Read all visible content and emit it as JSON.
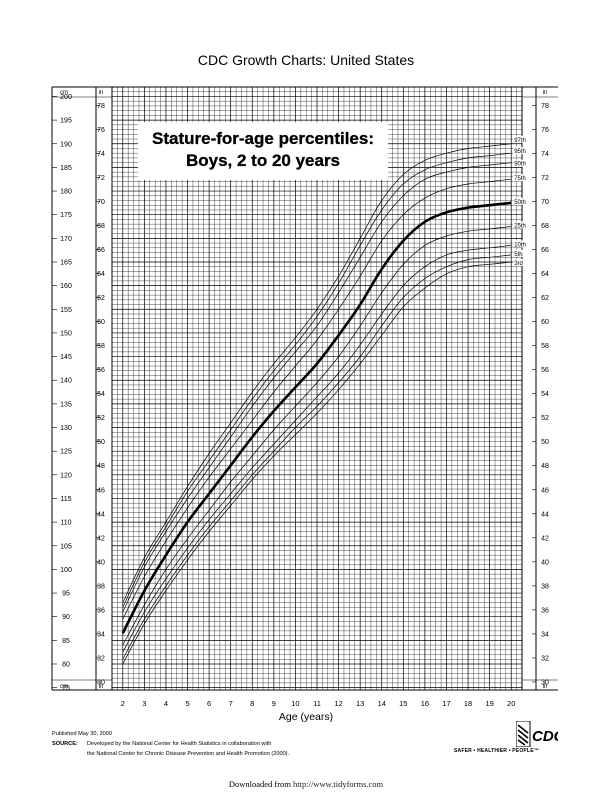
{
  "page": {
    "title": "CDC Growth Charts: United States",
    "published": "Published May 30, 2000",
    "source_label": "SOURCE:",
    "source_line1": "Developed by the National Center for Health Statistics in collaboration with",
    "source_line2": "the National Center for Chronic Disease Prevention and Health Promotion (2000).",
    "org_logo": "cdc-logo",
    "safer_healthier": "SAFER • HEALTHIER • PEOPLE™",
    "downloaded_prefix": "Downloaded from",
    "downloaded_url": "http://www.tidyforms.com"
  },
  "chart_data": {
    "type": "line",
    "title_line1": "Stature-for-age percentiles:",
    "title_line2": "Boys, 2 to 20 years",
    "xlabel": "Age (years)",
    "left_unit_top": "cm",
    "left_unit_bottom": "cm",
    "right_unit_top": "in",
    "right_unit_bottom": "in",
    "inner_unit_top": "in",
    "inner_unit_bottom": "in",
    "xlim": [
      1.5,
      20.5
    ],
    "ylim_cm": [
      74.5,
      202
    ],
    "x_ticks": [
      2,
      3,
      4,
      5,
      6,
      7,
      8,
      9,
      10,
      11,
      12,
      13,
      14,
      15,
      16,
      17,
      18,
      19,
      20
    ],
    "cm_ticks": [
      75,
      80,
      85,
      90,
      95,
      100,
      105,
      110,
      115,
      120,
      125,
      130,
      135,
      140,
      145,
      150,
      155,
      160,
      165,
      170,
      175,
      180,
      185,
      190,
      195,
      200
    ],
    "in_ticks": [
      30,
      32,
      34,
      36,
      38,
      40,
      42,
      44,
      46,
      48,
      50,
      52,
      54,
      56,
      58,
      60,
      62,
      64,
      66,
      68,
      70,
      72,
      74,
      76,
      78
    ],
    "grid": true,
    "x": [
      2,
      3,
      4,
      5,
      6,
      7,
      8,
      9,
      10,
      11,
      12,
      13,
      14,
      15,
      16,
      17,
      18,
      19,
      20
    ],
    "series": [
      {
        "name": "97th",
        "values": [
          93,
          102.5,
          110,
          117.5,
          124.5,
          131,
          137.5,
          143.5,
          149,
          155,
          162,
          170,
          178,
          183.5,
          186.5,
          188,
          189,
          189.5,
          190
        ]
      },
      {
        "name": "95th",
        "values": [
          92,
          101.5,
          109,
          116.5,
          123,
          129.5,
          136,
          142,
          147.5,
          153.5,
          160.5,
          168.5,
          176,
          181.5,
          184.5,
          186,
          187,
          187.5,
          188
        ]
      },
      {
        "name": "90th",
        "values": [
          91,
          100.5,
          108,
          115,
          121.5,
          128,
          134.5,
          140.5,
          146,
          151.5,
          158.5,
          166,
          173.5,
          179,
          182.5,
          184,
          185,
          185.5,
          186
        ]
      },
      {
        "name": "75th",
        "values": [
          89.5,
          98.5,
          106,
          113,
          119.5,
          125.5,
          131.5,
          137.5,
          143,
          148.5,
          155,
          162,
          169.5,
          175,
          178.5,
          180.5,
          181.5,
          182,
          182.5
        ]
      },
      {
        "name": "50th",
        "values": [
          86.5,
          95.5,
          103,
          110,
          116,
          122,
          128,
          133.5,
          138.5,
          143.5,
          149.5,
          156,
          163.5,
          169.5,
          173.5,
          175.5,
          176.5,
          177,
          177.5
        ]
      },
      {
        "name": "25th",
        "values": [
          84,
          92.5,
          100,
          106.5,
          112.5,
          118.5,
          124,
          129.5,
          134.5,
          139.5,
          145,
          151.5,
          158.5,
          164.5,
          168.5,
          170.5,
          171.5,
          172,
          172.5
        ]
      },
      {
        "name": "10th",
        "values": [
          82.5,
          91,
          98,
          104.5,
          110.5,
          116,
          121.5,
          126.5,
          131.5,
          136.5,
          141.5,
          147.5,
          154,
          160,
          164,
          166.5,
          167.5,
          168,
          168.5
        ]
      },
      {
        "name": "5th",
        "values": [
          81,
          89.5,
          96.5,
          103,
          109,
          114.5,
          120,
          125,
          130,
          134.5,
          139.5,
          145,
          151.5,
          157.5,
          161.5,
          164,
          165.5,
          166,
          166.5
        ]
      },
      {
        "name": "3rd",
        "values": [
          80,
          88.5,
          95.5,
          102,
          108,
          113.5,
          119,
          124,
          128.5,
          133,
          138,
          143.5,
          149.5,
          155.5,
          159.5,
          162.5,
          164,
          164.5,
          165
        ]
      }
    ]
  }
}
